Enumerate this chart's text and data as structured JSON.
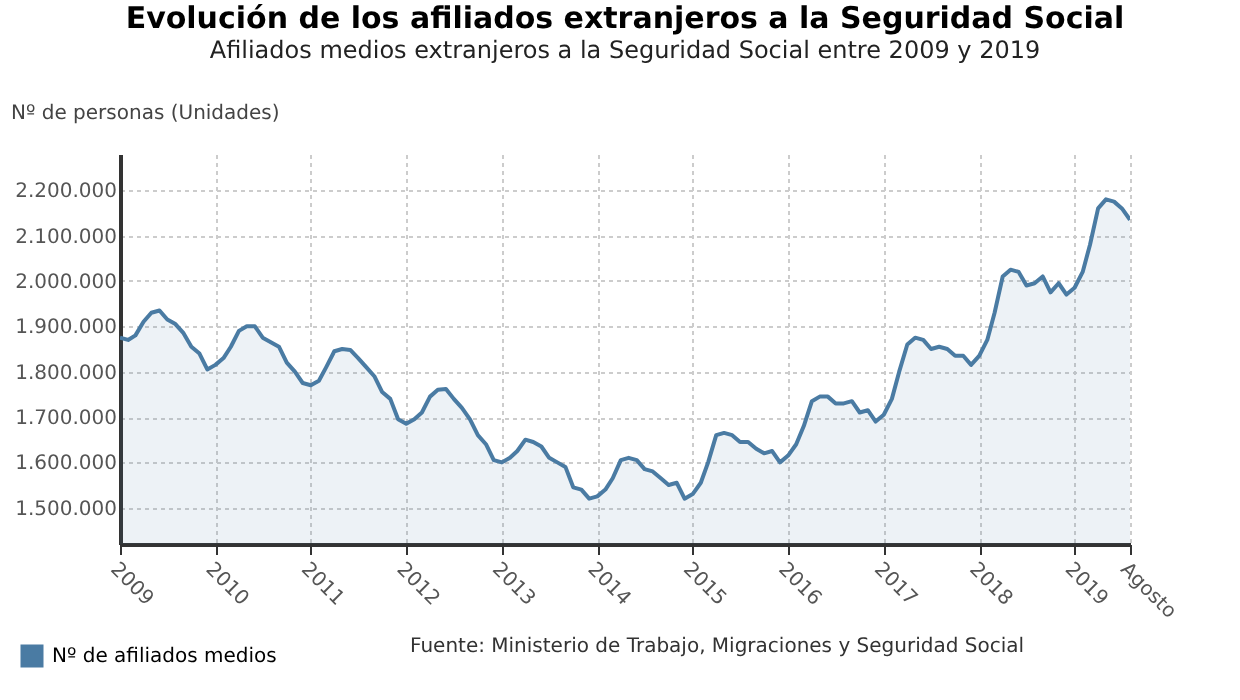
{
  "chart_data": {
    "type": "area",
    "title": "Evolución de los afiliados extranjeros a la Seguridad Social",
    "subtitle": "Afiliados medios extranjeros a la Seguridad Social entre 2009 y 2019",
    "ylabel": "Nº de personas (Unidades)",
    "annotations": [
      "Fuente: Ministerio de Trabajo, Migraciones y Seguridad Social"
    ],
    "x": [
      "2009-01",
      "2009-02",
      "2009-03",
      "2009-04",
      "2009-05",
      "2009-06",
      "2009-07",
      "2009-08",
      "2009-09",
      "2009-10",
      "2009-11",
      "2009-12",
      "2010-01",
      "2010-02",
      "2010-03",
      "2010-04",
      "2010-05",
      "2010-06",
      "2010-07",
      "2010-08",
      "2010-09",
      "2010-10",
      "2010-11",
      "2010-12",
      "2011-01",
      "2011-02",
      "2011-03",
      "2011-04",
      "2011-05",
      "2011-06",
      "2011-07",
      "2011-08",
      "2011-09",
      "2011-10",
      "2011-11",
      "2011-12",
      "2012-01",
      "2012-02",
      "2012-03",
      "2012-04",
      "2012-05",
      "2012-06",
      "2012-07",
      "2012-08",
      "2012-09",
      "2012-10",
      "2012-11",
      "2012-12",
      "2013-01",
      "2013-02",
      "2013-03",
      "2013-04",
      "2013-05",
      "2013-06",
      "2013-07",
      "2013-08",
      "2013-09",
      "2013-10",
      "2013-11",
      "2013-12",
      "2014-01",
      "2014-02",
      "2014-03",
      "2014-04",
      "2014-05",
      "2014-06",
      "2014-07",
      "2014-08",
      "2014-09",
      "2014-10",
      "2014-11",
      "2014-12",
      "2015-01",
      "2015-02",
      "2015-03",
      "2015-04",
      "2015-05",
      "2015-06",
      "2015-07",
      "2015-08",
      "2015-09",
      "2015-10",
      "2015-11",
      "2015-12",
      "2016-01",
      "2016-02",
      "2016-03",
      "2016-04",
      "2016-05",
      "2016-06",
      "2016-07",
      "2016-08",
      "2016-09",
      "2016-10",
      "2016-11",
      "2016-12",
      "2017-01",
      "2017-02",
      "2017-03",
      "2017-04",
      "2017-05",
      "2017-06",
      "2017-07",
      "2017-08",
      "2017-09",
      "2017-10",
      "2017-11",
      "2017-12",
      "2018-01",
      "2018-02",
      "2018-03",
      "2018-04",
      "2018-05",
      "2018-06",
      "2018-07",
      "2018-08",
      "2018-09",
      "2018-10",
      "2018-11",
      "2018-12",
      "2019-01",
      "2019-02",
      "2019-03",
      "2019-04",
      "2019-05",
      "2019-06",
      "2019-07",
      "2019-08"
    ],
    "series": [
      {
        "name": "Nº de afiliados medios",
        "color": "#4a7ba3",
        "values": [
          1875000,
          1870000,
          1880000,
          1910000,
          1930000,
          1935000,
          1915000,
          1905000,
          1885000,
          1855000,
          1840000,
          1805000,
          1815000,
          1830000,
          1855000,
          1890000,
          1900000,
          1900000,
          1875000,
          1865000,
          1855000,
          1820000,
          1800000,
          1775000,
          1770000,
          1780000,
          1810000,
          1845000,
          1850000,
          1848000,
          1830000,
          1810000,
          1790000,
          1755000,
          1740000,
          1695000,
          1685000,
          1695000,
          1710000,
          1745000,
          1760000,
          1762000,
          1740000,
          1720000,
          1695000,
          1660000,
          1640000,
          1605000,
          1600000,
          1610000,
          1625000,
          1650000,
          1645000,
          1635000,
          1610000,
          1600000,
          1590000,
          1545000,
          1540000,
          1520000,
          1525000,
          1540000,
          1565000,
          1605000,
          1610000,
          1605000,
          1585000,
          1580000,
          1565000,
          1550000,
          1555000,
          1520000,
          1530000,
          1555000,
          1600000,
          1660000,
          1665000,
          1660000,
          1645000,
          1645000,
          1630000,
          1620000,
          1625000,
          1600000,
          1615000,
          1640000,
          1680000,
          1735000,
          1745000,
          1745000,
          1730000,
          1730000,
          1735000,
          1710000,
          1715000,
          1690000,
          1705000,
          1740000,
          1800000,
          1860000,
          1875000,
          1870000,
          1850000,
          1855000,
          1850000,
          1835000,
          1835000,
          1815000,
          1835000,
          1870000,
          1930000,
          2010000,
          2025000,
          2020000,
          1990000,
          1995000,
          2010000,
          1975000,
          1995000,
          1970000,
          1985000,
          2020000,
          2080000,
          2160000,
          2180000,
          2175000,
          2160000,
          2135000
        ]
      }
    ],
    "xlim": [
      "2009-01",
      "2019-08"
    ],
    "xticks": [
      {
        "value": "2009-01",
        "label": "2009"
      },
      {
        "value": "2010-01",
        "label": "2010"
      },
      {
        "value": "2011-01",
        "label": "2011"
      },
      {
        "value": "2012-01",
        "label": "2012"
      },
      {
        "value": "2013-01",
        "label": "2013"
      },
      {
        "value": "2014-01",
        "label": "2014"
      },
      {
        "value": "2015-01",
        "label": "2015"
      },
      {
        "value": "2016-01",
        "label": "2016"
      },
      {
        "value": "2017-01",
        "label": "2017"
      },
      {
        "value": "2018-01",
        "label": "2018"
      },
      {
        "value": "2019-01",
        "label": "2019"
      },
      {
        "value": "2019-08",
        "label": "Agosto"
      }
    ],
    "ylim": [
      1420000,
      2280000
    ],
    "yticks": [
      {
        "value": 1500000,
        "label": "1.500.000"
      },
      {
        "value": 1600000,
        "label": "1.600.000"
      },
      {
        "value": 1700000,
        "label": "1.700.000"
      },
      {
        "value": 1800000,
        "label": "1.800.000"
      },
      {
        "value": 1900000,
        "label": "1.900.000"
      },
      {
        "value": 2000000,
        "label": "2.000.000"
      },
      {
        "value": 2100000,
        "label": "2.100.000"
      },
      {
        "value": 2200000,
        "label": "2.200.000"
      }
    ],
    "grid": true,
    "legend": "bottom left",
    "marker": "none"
  }
}
